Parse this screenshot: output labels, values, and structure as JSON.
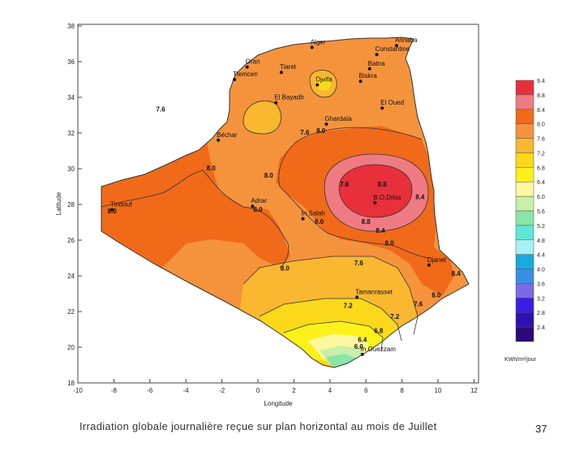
{
  "caption": "Irradiation globale journalière reçue sur plan horizontal au mois de Juillet",
  "page_number": "37",
  "axes": {
    "xlabel": "Longitude",
    "ylabel": "Latitude",
    "x_ticks": [
      "-10",
      "-8",
      "-6",
      "-4",
      "-2",
      "0",
      "2",
      "4",
      "6",
      "8",
      "10",
      "12"
    ],
    "y_ticks": [
      "38",
      "36",
      "34",
      "32",
      "30",
      "28",
      "26",
      "24",
      "22",
      "20",
      "18"
    ]
  },
  "legend": {
    "unit": "KWh/m²/jour",
    "levels": [
      {
        "value": "9.4",
        "color": "#e8303a"
      },
      {
        "value": "8.8",
        "color": "#f07a82"
      },
      {
        "value": "8.4",
        "color": "#f06a1a"
      },
      {
        "value": "8.0",
        "color": "#f5933d"
      },
      {
        "value": "7.6",
        "color": "#f9b830"
      },
      {
        "value": "7.2",
        "color": "#fbd91a"
      },
      {
        "value": "6.8",
        "color": "#fcf21a"
      },
      {
        "value": "6.4",
        "color": "#fdf7a0"
      },
      {
        "value": "6.0",
        "color": "#c8f0a8"
      },
      {
        "value": "5.6",
        "color": "#8ae6a6"
      },
      {
        "value": "5.2",
        "color": "#5ee6d6"
      },
      {
        "value": "4.8",
        "color": "#a8f0f6"
      },
      {
        "value": "4.4",
        "color": "#1aaae0"
      },
      {
        "value": "4.0",
        "color": "#3a8ee6"
      },
      {
        "value": "3.6",
        "color": "#7a6ae6"
      },
      {
        "value": "3.2",
        "color": "#3a1ee6"
      },
      {
        "value": "2.8",
        "color": "#3010b0"
      },
      {
        "value": "2.4",
        "color": "#2a0a7a"
      }
    ]
  },
  "cities": [
    {
      "name": "Alger",
      "lon": 3.0,
      "lat": 36.8
    },
    {
      "name": "Annaba",
      "lon": 7.7,
      "lat": 36.9
    },
    {
      "name": "Constantine",
      "lon": 6.6,
      "lat": 36.4
    },
    {
      "name": "Oran",
      "lon": -0.6,
      "lat": 35.7
    },
    {
      "name": "Tiaret",
      "lon": 1.3,
      "lat": 35.4
    },
    {
      "name": "Tlemcen",
      "lon": -1.3,
      "lat": 35.0
    },
    {
      "name": "Batna",
      "lon": 6.2,
      "lat": 35.6
    },
    {
      "name": "Djelfa",
      "lon": 3.3,
      "lat": 34.7
    },
    {
      "name": "Biskra",
      "lon": 5.7,
      "lat": 34.9
    },
    {
      "name": "El Bayadh",
      "lon": 1.0,
      "lat": 33.7
    },
    {
      "name": "El Oued",
      "lon": 6.9,
      "lat": 33.4
    },
    {
      "name": "Ghardaïa",
      "lon": 3.8,
      "lat": 32.5
    },
    {
      "name": "Béchar",
      "lon": -2.2,
      "lat": 31.6
    },
    {
      "name": "B.O.Driss",
      "lon": 6.5,
      "lat": 28.1
    },
    {
      "name": "Tindouf",
      "lon": -8.1,
      "lat": 27.7
    },
    {
      "name": "Adrar",
      "lon": -0.3,
      "lat": 27.9
    },
    {
      "name": "In Salah",
      "lon": 2.5,
      "lat": 27.2
    },
    {
      "name": "Djanet",
      "lon": 9.5,
      "lat": 24.6
    },
    {
      "name": "Tamanrasset",
      "lon": 5.5,
      "lat": 22.8
    },
    {
      "name": "In Guezzam",
      "lon": 5.8,
      "lat": 19.6
    }
  ],
  "isolines": [
    {
      "text": "8.8",
      "lon": 6.9,
      "lat": 29.0
    },
    {
      "text": "8.4",
      "lon": 9.0,
      "lat": 28.3
    },
    {
      "text": "8.4",
      "lon": 6.8,
      "lat": 26.4
    },
    {
      "text": "8.8",
      "lon": 6.0,
      "lat": 26.9
    },
    {
      "text": "7.6",
      "lon": 4.8,
      "lat": 29.0
    },
    {
      "text": "8.0",
      "lon": 0.6,
      "lat": 29.5
    },
    {
      "text": "8.0",
      "lon": 3.5,
      "lat": 32.0
    },
    {
      "text": "7.6",
      "lon": 2.6,
      "lat": 31.9
    },
    {
      "text": "8.0",
      "lon": -2.6,
      "lat": 29.9
    },
    {
      "text": "8.0",
      "lon": -8.1,
      "lat": 27.5
    },
    {
      "text": "8.0",
      "lon": 0.0,
      "lat": 27.6
    },
    {
      "text": "8.0",
      "lon": 3.4,
      "lat": 26.9
    },
    {
      "text": "8.0",
      "lon": 1.5,
      "lat": 24.3
    },
    {
      "text": "8.0",
      "lon": 7.3,
      "lat": 25.7
    },
    {
      "text": "7.6",
      "lon": 5.6,
      "lat": 24.6
    },
    {
      "text": "7.2",
      "lon": 5.0,
      "lat": 22.2
    },
    {
      "text": "7.2",
      "lon": 7.6,
      "lat": 21.6
    },
    {
      "text": "7.6",
      "lon": 8.9,
      "lat": 22.3
    },
    {
      "text": "8.0",
      "lon": 9.9,
      "lat": 22.8
    },
    {
      "text": "8.4",
      "lon": 11.0,
      "lat": 24.0
    },
    {
      "text": "6.8",
      "lon": 6.7,
      "lat": 20.8
    },
    {
      "text": "6.4",
      "lon": 5.8,
      "lat": 20.3
    },
    {
      "text": "6.0",
      "lon": 5.6,
      "lat": 19.9
    },
    {
      "text": "7.6",
      "lon": -5.4,
      "lat": 33.2
    }
  ]
}
